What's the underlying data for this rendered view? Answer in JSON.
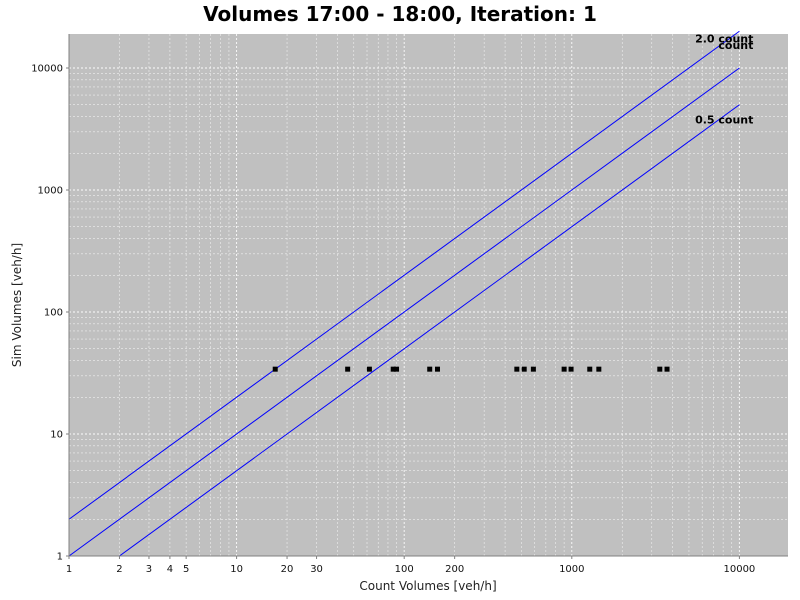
{
  "chart_data": {
    "type": "scatter",
    "title": "Volumes 17:00 - 18:00, Iteration: 1",
    "xlabel": "Count Volumes [veh/h]",
    "ylabel": "Sim Volumes [veh/h]",
    "xscale": "log",
    "yscale": "log",
    "xlim": [
      1,
      19500
    ],
    "ylim": [
      1,
      19000
    ],
    "grid": true,
    "x_ticks": [
      {
        "value": 1,
        "label": "1"
      },
      {
        "value": 2,
        "label": "2"
      },
      {
        "value": 3,
        "label": "3"
      },
      {
        "value": 4,
        "label": "4"
      },
      {
        "value": 5,
        "label": "5"
      },
      {
        "value": 10,
        "label": "10"
      },
      {
        "value": 20,
        "label": "20"
      },
      {
        "value": 30,
        "label": "30"
      },
      {
        "value": 100,
        "label": "100"
      },
      {
        "value": 200,
        "label": "200"
      },
      {
        "value": 1000,
        "label": "1000"
      },
      {
        "value": 10000,
        "label": "10000"
      }
    ],
    "y_ticks": [
      {
        "value": 1,
        "label": "1"
      },
      {
        "value": 10,
        "label": "10"
      },
      {
        "value": 100,
        "label": "100"
      },
      {
        "value": 1000,
        "label": "1000"
      },
      {
        "value": 10000,
        "label": "10000"
      }
    ],
    "reference_lines": [
      {
        "name": "2.0 count",
        "factor": 2.0,
        "label": "2.0 count"
      },
      {
        "name": "count",
        "factor": 1.0,
        "label": "count"
      },
      {
        "name": "0.5 count",
        "factor": 0.5,
        "label": "0.5 count"
      }
    ],
    "series": [
      {
        "name": "links",
        "points": [
          {
            "x": 17,
            "y": 34
          },
          {
            "x": 46,
            "y": 34
          },
          {
            "x": 62,
            "y": 34
          },
          {
            "x": 86,
            "y": 34
          },
          {
            "x": 90,
            "y": 34
          },
          {
            "x": 142,
            "y": 34
          },
          {
            "x": 158,
            "y": 34
          },
          {
            "x": 470,
            "y": 34
          },
          {
            "x": 520,
            "y": 34
          },
          {
            "x": 590,
            "y": 34
          },
          {
            "x": 900,
            "y": 34
          },
          {
            "x": 990,
            "y": 34
          },
          {
            "x": 1280,
            "y": 34
          },
          {
            "x": 1450,
            "y": 34
          },
          {
            "x": 3350,
            "y": 34
          },
          {
            "x": 3700,
            "y": 34
          }
        ]
      }
    ],
    "colors": {
      "plot_background": "#c0c0c0",
      "grid": "#ffffff",
      "reference_line": "#0000ff",
      "marker": "#000000",
      "axis": "#808080"
    }
  }
}
